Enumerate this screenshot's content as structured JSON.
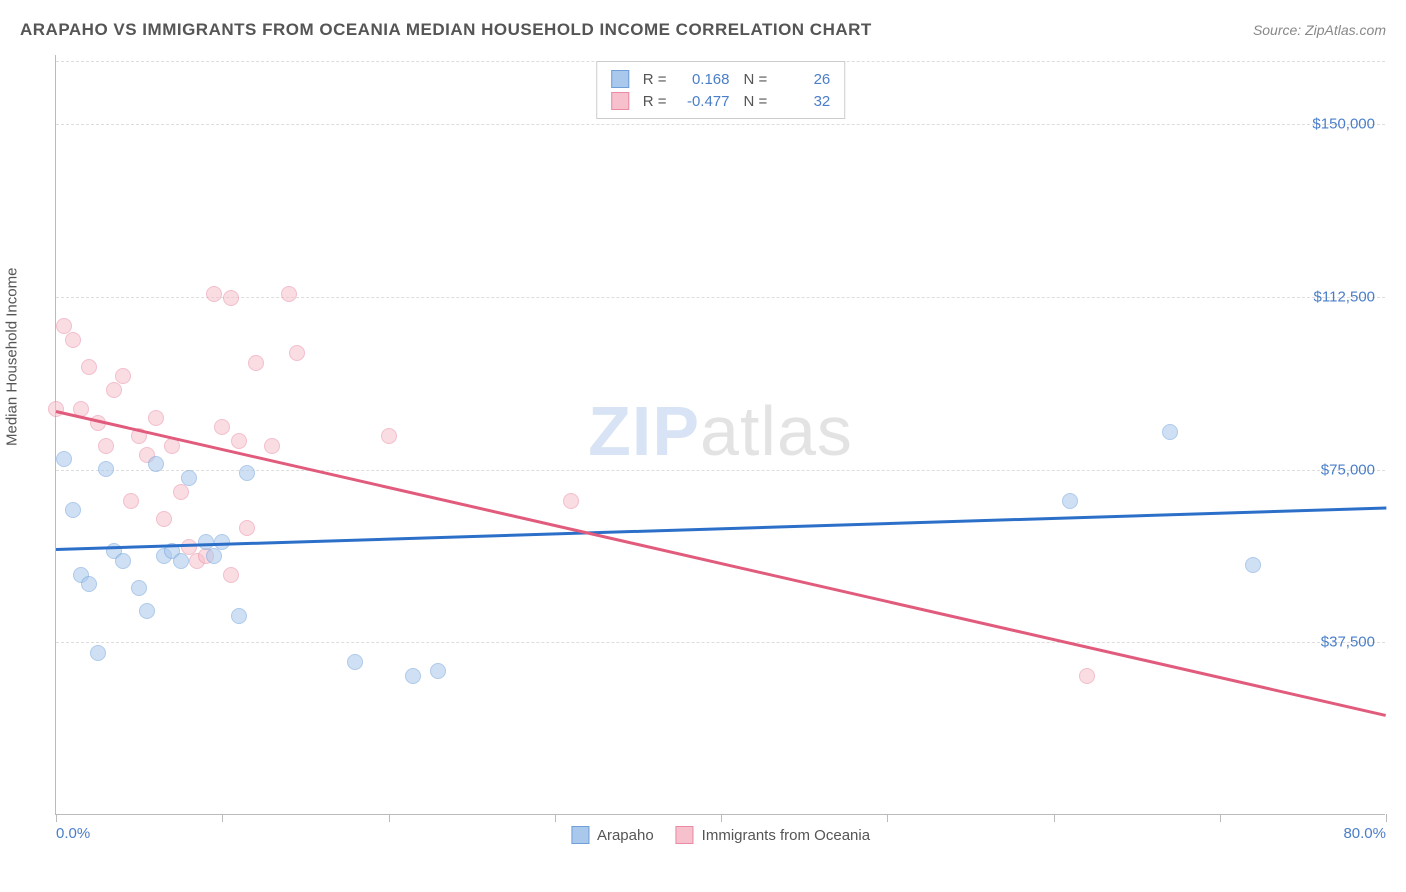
{
  "title": "ARAPAHO VS IMMIGRANTS FROM OCEANIA MEDIAN HOUSEHOLD INCOME CORRELATION CHART",
  "source_label": "Source: ZipAtlas.com",
  "y_axis_label": "Median Household Income",
  "watermark": {
    "part1": "ZIP",
    "part2": "atlas"
  },
  "chart": {
    "type": "scatter",
    "xlim": [
      0,
      80
    ],
    "ylim": [
      0,
      165000
    ],
    "x_ticks": [
      0,
      10,
      20,
      30,
      40,
      50,
      60,
      70,
      80
    ],
    "x_tick_labels": {
      "0": "0.0%",
      "80": "80.0%"
    },
    "y_gridlines": [
      37500,
      75000,
      112500,
      150000
    ],
    "y_tick_labels": [
      "$37,500",
      "$75,000",
      "$112,500",
      "$150,000"
    ],
    "background_color": "#ffffff",
    "grid_color": "#dddddd",
    "axis_color": "#bbbbbb",
    "label_color": "#4a7ec9",
    "text_color": "#555555",
    "point_radius": 8,
    "point_opacity": 0.55
  },
  "series": {
    "arapaho": {
      "label": "Arapaho",
      "color_fill": "#a9c8ec",
      "color_stroke": "#6d9fd9",
      "r_value": "0.168",
      "n_value": "26",
      "trend": {
        "x1": 0,
        "y1": 58000,
        "x2": 80,
        "y2": 67000,
        "color": "#2b6fc9"
      },
      "points": [
        [
          0.5,
          77000
        ],
        [
          1,
          66000
        ],
        [
          1.5,
          52000
        ],
        [
          2,
          50000
        ],
        [
          2.5,
          35000
        ],
        [
          3,
          75000
        ],
        [
          3.5,
          57000
        ],
        [
          4,
          55000
        ],
        [
          5,
          49000
        ],
        [
          5.5,
          44000
        ],
        [
          6,
          76000
        ],
        [
          6.5,
          56000
        ],
        [
          7,
          57000
        ],
        [
          7.5,
          55000
        ],
        [
          8,
          73000
        ],
        [
          9,
          59000
        ],
        [
          9.5,
          56000
        ],
        [
          10,
          59000
        ],
        [
          11,
          43000
        ],
        [
          11.5,
          74000
        ],
        [
          18,
          33000
        ],
        [
          21.5,
          30000
        ],
        [
          23,
          31000
        ],
        [
          61,
          68000
        ],
        [
          67,
          83000
        ],
        [
          72,
          54000
        ]
      ]
    },
    "oceania": {
      "label": "Immigrants from Oceania",
      "color_fill": "#f6c0cd",
      "color_stroke": "#e88ba3",
      "r_value": "-0.477",
      "n_value": "32",
      "trend": {
        "x1": 0,
        "y1": 88000,
        "x2": 80,
        "y2": 22000,
        "color": "#e15b7d"
      },
      "points": [
        [
          0.5,
          106000
        ],
        [
          1,
          103000
        ],
        [
          1.5,
          88000
        ],
        [
          2,
          97000
        ],
        [
          2.5,
          85000
        ],
        [
          3,
          80000
        ],
        [
          3.5,
          92000
        ],
        [
          4,
          95000
        ],
        [
          4.5,
          68000
        ],
        [
          5,
          82000
        ],
        [
          5.5,
          78000
        ],
        [
          6,
          86000
        ],
        [
          6.5,
          64000
        ],
        [
          7,
          80000
        ],
        [
          7.5,
          70000
        ],
        [
          8,
          58000
        ],
        [
          8.5,
          55000
        ],
        [
          9,
          56000
        ],
        [
          9.5,
          113000
        ],
        [
          10,
          84000
        ],
        [
          10.5,
          52000
        ],
        [
          10.5,
          112000
        ],
        [
          11,
          81000
        ],
        [
          11.5,
          62000
        ],
        [
          12,
          98000
        ],
        [
          13,
          80000
        ],
        [
          14,
          113000
        ],
        [
          14.5,
          100000
        ],
        [
          20,
          82000
        ],
        [
          31,
          68000
        ],
        [
          62,
          30000
        ],
        [
          0,
          88000
        ]
      ]
    }
  },
  "legend_top": {
    "r_label": "R =",
    "n_label": "N ="
  }
}
